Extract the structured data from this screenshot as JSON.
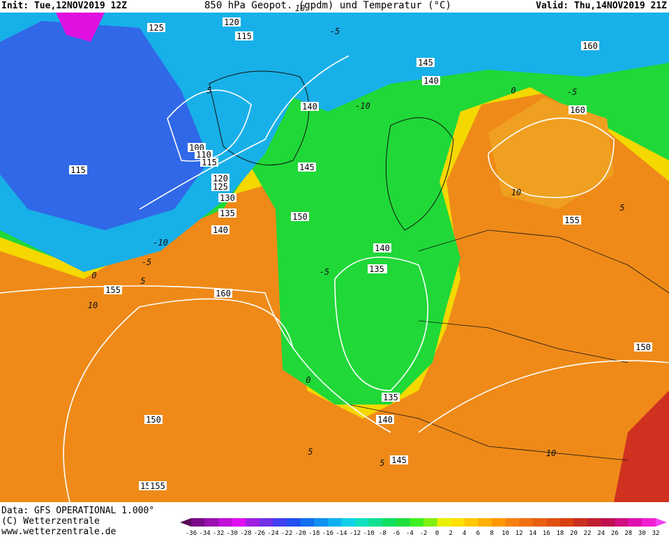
{
  "header": {
    "init": "Init: Tue,12NOV2019 12Z",
    "title": "850 hPa Geopot. (gpdm) und Temperatur (°C)",
    "valid": "Valid: Thu,14NOV2019 21Z"
  },
  "footer": {
    "source": "Data: GFS OPERATIONAL 1.000°",
    "copyright": "(C) Wetterzentrale",
    "url": "www.wetterzentrale.de"
  },
  "colorbar": {
    "labels": [
      -36,
      -34,
      -32,
      -30,
      -28,
      -26,
      -24,
      -22,
      -20,
      -18,
      -16,
      -14,
      -12,
      -10,
      -8,
      -6,
      -4,
      -2,
      0,
      2,
      4,
      6,
      8,
      10,
      12,
      14,
      16,
      18,
      20,
      22,
      24,
      26,
      28,
      30,
      32
    ],
    "colors": [
      "#5a0a5a",
      "#7a0a8a",
      "#9a10b0",
      "#c010d8",
      "#e010f0",
      "#a020e0",
      "#7030e8",
      "#4040f0",
      "#2050f0",
      "#1070f0",
      "#1090f0",
      "#10b0f0",
      "#10d0e8",
      "#10e0c0",
      "#10e090",
      "#10e060",
      "#20e040",
      "#40f020",
      "#80f010",
      "#e8f000",
      "#ffe000",
      "#ffc800",
      "#ffb000",
      "#ff9800",
      "#f88010",
      "#f07010",
      "#e86010",
      "#e05010",
      "#d84010",
      "#c83020",
      "#c02030",
      "#c01050",
      "#d01080",
      "#e010b0",
      "#f020d0",
      "#f040f0"
    ]
  },
  "contour_labels": [
    "125",
    "120",
    "115",
    "100",
    "110",
    "115",
    "120",
    "125",
    "130",
    "135",
    "140",
    "140",
    "145",
    "150",
    "140",
    "145",
    "140",
    "150",
    "155",
    "160",
    "155",
    "150",
    "155",
    "160",
    "160",
    "155",
    "135",
    "140",
    "135",
    "140",
    "145",
    "145",
    "150",
    "115",
    "-10",
    "-10",
    "-5",
    "0",
    "5",
    "10",
    "0",
    "5",
    "10",
    "-5",
    "0",
    "5",
    "-5",
    "5",
    "10",
    "10",
    "-5",
    "5"
  ]
}
